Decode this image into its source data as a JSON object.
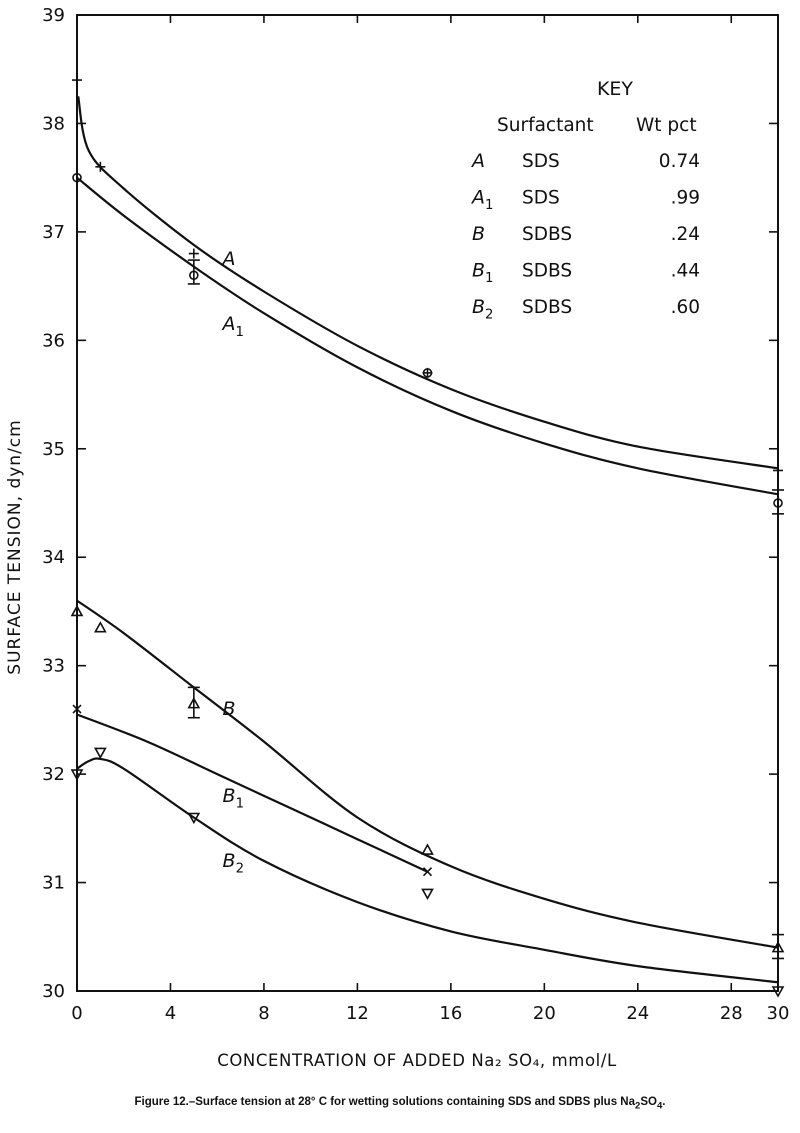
{
  "caption": {
    "text": "Figure 12.–Surface tension at 28° C for wetting solutions containing SDS and SDBS plus Na",
    "sub1": "2",
    "text2": "SO",
    "sub2": "4",
    "text3": "."
  },
  "chart_data": {
    "type": "line",
    "title": "",
    "xlabel": "CONCENTRATION OF ADDED Na₂ SO₄, mmol/L",
    "ylabel": "SURFACE TENSION, dyn/cm",
    "xlim": [
      0,
      30
    ],
    "ylim": [
      30,
      39
    ],
    "x_ticks": [
      "0",
      "4",
      "8",
      "12",
      "16",
      "20",
      "24",
      "28",
      "30"
    ],
    "x_tick_values": [
      0,
      4,
      8,
      12,
      16,
      20,
      24,
      28,
      30
    ],
    "y_ticks": [
      "30",
      "31",
      "32",
      "33",
      "34",
      "35",
      "36",
      "37",
      "38",
      "39"
    ],
    "y_tick_values": [
      30,
      31,
      32,
      33,
      34,
      35,
      36,
      37,
      38,
      39
    ],
    "grid": false,
    "key": {
      "title": "KEY",
      "headers": [
        "Surfactant",
        "Wt pct"
      ],
      "rows": [
        {
          "curve": "A",
          "sub": "",
          "surfactant": "SDS",
          "wt": "0.74"
        },
        {
          "curve": "A",
          "sub": "1",
          "surfactant": "SDS",
          "wt": ".99"
        },
        {
          "curve": "B",
          "sub": "",
          "surfactant": "SDBS",
          "wt": ".24"
        },
        {
          "curve": "B",
          "sub": "1",
          "surfactant": "SDBS",
          "wt": ".44"
        },
        {
          "curve": "B",
          "sub": "2",
          "surfactant": "SDBS",
          "wt": ".60"
        }
      ]
    },
    "series": [
      {
        "name": "A",
        "sub": "",
        "marker": "plus",
        "points": [
          [
            0,
            38.4
          ],
          [
            1,
            37.6
          ],
          [
            5,
            36.8
          ],
          [
            15,
            35.7
          ],
          [
            30,
            34.8
          ]
        ],
        "curve": [
          [
            0.05,
            38.25
          ],
          [
            0.5,
            37.75
          ],
          [
            2,
            37.4
          ],
          [
            5,
            36.88
          ],
          [
            8,
            36.45
          ],
          [
            12,
            35.95
          ],
          [
            16,
            35.55
          ],
          [
            20,
            35.25
          ],
          [
            24,
            35.02
          ],
          [
            30,
            34.82
          ]
        ],
        "curve_label_at": [
          5.8,
          36.75
        ],
        "error_bars": []
      },
      {
        "name": "A",
        "sub": "1",
        "marker": "circle",
        "points": [
          [
            0,
            37.5
          ],
          [
            5,
            36.6
          ],
          [
            15,
            35.7
          ],
          [
            30,
            34.5
          ]
        ],
        "curve": [
          [
            0,
            37.5
          ],
          [
            2,
            37.15
          ],
          [
            5,
            36.68
          ],
          [
            8,
            36.25
          ],
          [
            12,
            35.75
          ],
          [
            16,
            35.35
          ],
          [
            20,
            35.05
          ],
          [
            24,
            34.82
          ],
          [
            30,
            34.58
          ]
        ],
        "curve_label_at": [
          5.8,
          36.15
        ],
        "error_bars": [
          [
            5,
            36.52,
            36.74
          ],
          [
            30,
            34.4,
            34.62
          ]
        ]
      },
      {
        "name": "B",
        "sub": "",
        "marker": "triangle-up",
        "points": [
          [
            0,
            33.5
          ],
          [
            1,
            33.35
          ],
          [
            5,
            32.65
          ],
          [
            15,
            31.3
          ],
          [
            30,
            30.4
          ]
        ],
        "curve": [
          [
            0,
            33.6
          ],
          [
            2,
            33.3
          ],
          [
            5,
            32.8
          ],
          [
            8,
            32.3
          ],
          [
            12,
            31.6
          ],
          [
            16,
            31.15
          ],
          [
            20,
            30.85
          ],
          [
            24,
            30.63
          ],
          [
            30,
            30.4
          ]
        ],
        "curve_label_at": [
          5.8,
          32.6
        ],
        "error_bars": [
          [
            5,
            32.52,
            32.8
          ],
          [
            30,
            30.3,
            30.52
          ]
        ]
      },
      {
        "name": "B",
        "sub": "1",
        "marker": "x",
        "points": [
          [
            0,
            32.6
          ],
          [
            15,
            31.1
          ]
        ],
        "curve": [
          [
            0,
            32.55
          ],
          [
            3,
            32.3
          ],
          [
            6,
            32.0
          ],
          [
            9,
            31.7
          ],
          [
            12,
            31.4
          ],
          [
            15,
            31.1
          ]
        ],
        "curve_label_at": [
          5.8,
          31.8
        ],
        "error_bars": []
      },
      {
        "name": "B",
        "sub": "2",
        "marker": "triangle-down",
        "points": [
          [
            0,
            32.0
          ],
          [
            1,
            32.2
          ],
          [
            5,
            31.6
          ],
          [
            15,
            30.9
          ],
          [
            30,
            30.0
          ]
        ],
        "curve": [
          [
            0,
            32.05
          ],
          [
            0.5,
            32.12
          ],
          [
            1,
            32.14
          ],
          [
            2,
            32.05
          ],
          [
            5,
            31.6
          ],
          [
            8,
            31.2
          ],
          [
            12,
            30.82
          ],
          [
            16,
            30.55
          ],
          [
            20,
            30.38
          ],
          [
            24,
            30.23
          ],
          [
            30,
            30.08
          ]
        ],
        "curve_label_at": [
          5.8,
          31.2
        ],
        "error_bars": []
      }
    ]
  }
}
